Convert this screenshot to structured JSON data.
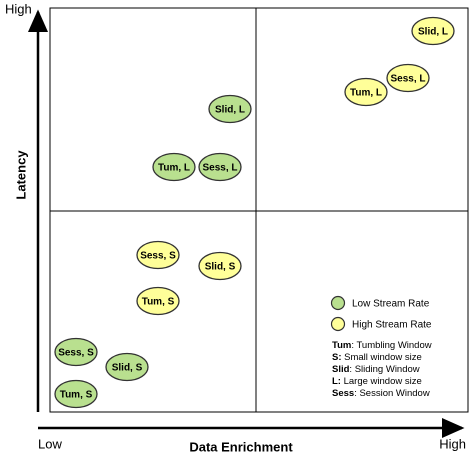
{
  "axes": {
    "y_label": "Latency",
    "y_high": "High",
    "x_label": "Data Enrichment",
    "x_low": "Low",
    "x_high": "High"
  },
  "nodes": [
    {
      "label": "Slid, L",
      "color": "#ffff99"
    },
    {
      "label": "Sess, L",
      "color": "#ffff99"
    },
    {
      "label": "Tum, L",
      "color": "#ffff99"
    },
    {
      "label": "Slid, L",
      "color": "#b9e08f"
    },
    {
      "label": "Tum, L",
      "color": "#b9e08f"
    },
    {
      "label": "Sess, L",
      "color": "#b9e08f"
    },
    {
      "label": "Sess, S",
      "color": "#ffff99"
    },
    {
      "label": "Slid, S",
      "color": "#ffff99"
    },
    {
      "label": "Tum, S",
      "color": "#ffff99"
    },
    {
      "label": "Sess, S",
      "color": "#b9e08f"
    },
    {
      "label": "Slid, S",
      "color": "#b9e08f"
    },
    {
      "label": "Tum, S",
      "color": "#b9e08f"
    }
  ],
  "legend": [
    {
      "label": "Low Stream Rate",
      "color": "#b9e08f"
    },
    {
      "label": "High Stream Rate",
      "color": "#ffff99"
    }
  ],
  "glossary": [
    {
      "term": "Tum",
      "definition": ": Tumbling Window"
    },
    {
      "term": "S:",
      "definition": " Small window size"
    },
    {
      "term": "Slid",
      "definition": ": Sliding Window"
    },
    {
      "term": "L:",
      "definition": "  Large window size"
    },
    {
      "term": "Sess",
      "definition": ": Session Window"
    }
  ]
}
